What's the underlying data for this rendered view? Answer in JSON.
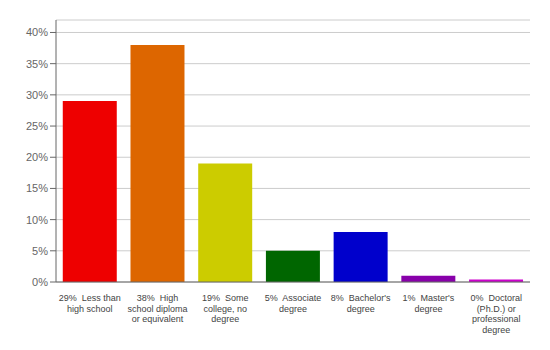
{
  "chart_data": {
    "type": "bar",
    "categories": [
      "29%  Less than\nhigh school",
      "38%  High\nschool diploma\nor equivalent",
      "19%  Some\ncollege, no\ndegree",
      "5%  Associate\ndegree",
      "8%  Bachelor's\ndegree",
      "1%  Master's\ndegree",
      "0%  Doctoral\n(Ph.D.) or\nprofessional\ndegree"
    ],
    "values": [
      29,
      38,
      19,
      5,
      8,
      1,
      0.4
    ],
    "colors": [
      "#ee0000",
      "#dd6600",
      "#cccc00",
      "#006600",
      "#0000cc",
      "#8800aa",
      "#cc00cc"
    ],
    "ylim": [
      0,
      42
    ],
    "yticks": [
      {
        "value": 0,
        "label": "0%"
      },
      {
        "value": 5,
        "label": "5%"
      },
      {
        "value": 10,
        "label": "10%"
      },
      {
        "value": 15,
        "label": "15%"
      },
      {
        "value": 20,
        "label": "20%"
      },
      {
        "value": 25,
        "label": "25%"
      },
      {
        "value": 30,
        "label": "30%"
      },
      {
        "value": 35,
        "label": "35%"
      },
      {
        "value": 40,
        "label": "40%"
      }
    ],
    "grid": true
  }
}
